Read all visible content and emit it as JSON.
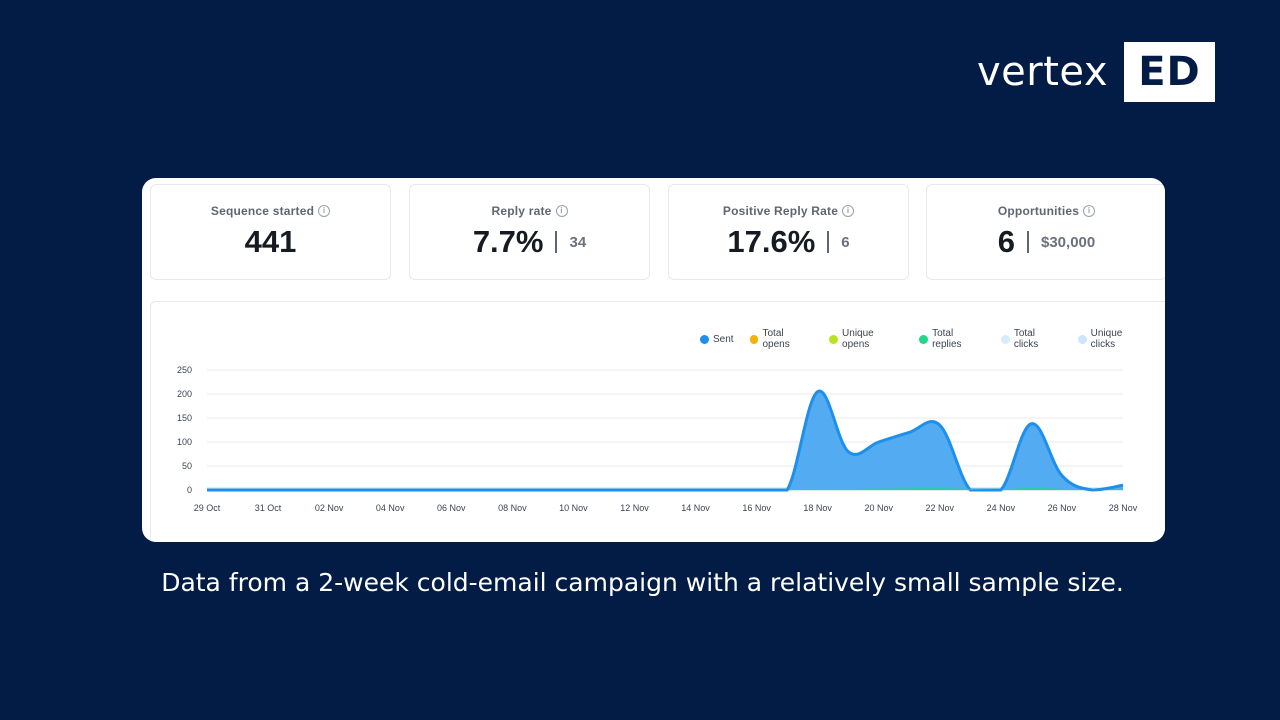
{
  "logo": {
    "word": "vertex",
    "box": "ED"
  },
  "kpis": [
    {
      "title": "Sequence started",
      "value": "441",
      "sub": ""
    },
    {
      "title": "Reply rate",
      "value": "7.7%",
      "sub": "34"
    },
    {
      "title": "Positive Reply Rate",
      "value": "17.6%",
      "sub": "6"
    },
    {
      "title": "Opportunities",
      "value": "6",
      "sub": "$30,000"
    }
  ],
  "info_icon": "info-icon",
  "caption": "Data from a 2-week cold-email campaign with a relatively small sample size.",
  "colors": {
    "background": "#031c45",
    "sent": "#1e8fea",
    "sent_fill": "#4aa8f0",
    "total_opens": "#f5b301",
    "unique_opens": "#b5e61d",
    "total_replies": "#22d68a",
    "total_clicks": "#d7ecfa",
    "unique_clicks": "#c9e6fb"
  },
  "chart_data": {
    "type": "area",
    "legend_placement": "top-right",
    "grid": true,
    "ylim": [
      0,
      250
    ],
    "yticks": [
      "0",
      "50",
      "100",
      "150",
      "200",
      "250"
    ],
    "xticks": [
      "29 Oct",
      "31 Oct",
      "02 Nov",
      "04 Nov",
      "06 Nov",
      "08 Nov",
      "10 Nov",
      "12 Nov",
      "14 Nov",
      "16 Nov",
      "18 Nov",
      "20 Nov",
      "22 Nov",
      "24 Nov",
      "26 Nov",
      "28 Nov"
    ],
    "x": [
      "29 Oct",
      "30 Oct",
      "31 Oct",
      "01 Nov",
      "02 Nov",
      "03 Nov",
      "04 Nov",
      "05 Nov",
      "06 Nov",
      "07 Nov",
      "08 Nov",
      "09 Nov",
      "10 Nov",
      "11 Nov",
      "12 Nov",
      "13 Nov",
      "14 Nov",
      "15 Nov",
      "16 Nov",
      "17 Nov",
      "18 Nov",
      "19 Nov",
      "20 Nov",
      "21 Nov",
      "22 Nov",
      "23 Nov",
      "24 Nov",
      "25 Nov",
      "26 Nov",
      "27 Nov",
      "28 Nov"
    ],
    "series": [
      {
        "name": "Sent",
        "values": [
          0,
          0,
          0,
          0,
          0,
          0,
          0,
          0,
          0,
          0,
          0,
          0,
          0,
          0,
          0,
          0,
          0,
          0,
          0,
          0,
          205,
          80,
          100,
          120,
          135,
          0,
          0,
          138,
          30,
          0,
          10
        ]
      },
      {
        "name": "Total opens",
        "values": [
          0,
          0,
          0,
          0,
          0,
          0,
          0,
          0,
          0,
          0,
          0,
          0,
          0,
          0,
          0,
          0,
          0,
          0,
          0,
          0,
          0,
          0,
          0,
          0,
          0,
          0,
          0,
          0,
          0,
          0,
          0
        ]
      },
      {
        "name": "Unique opens",
        "values": [
          0,
          0,
          0,
          0,
          0,
          0,
          0,
          0,
          0,
          0,
          0,
          0,
          0,
          0,
          0,
          0,
          0,
          0,
          0,
          0,
          0,
          0,
          0,
          0,
          0,
          0,
          0,
          0,
          0,
          0,
          0
        ]
      },
      {
        "name": "Total replies",
        "values": [
          0,
          0,
          0,
          0,
          0,
          0,
          0,
          0,
          0,
          0,
          0,
          0,
          0,
          0,
          0,
          0,
          0,
          0,
          0,
          0,
          2,
          2,
          3,
          4,
          5,
          2,
          0,
          6,
          2,
          0,
          1
        ]
      },
      {
        "name": "Total clicks",
        "values": [
          0,
          0,
          0,
          0,
          0,
          0,
          0,
          0,
          0,
          0,
          0,
          0,
          0,
          0,
          0,
          0,
          0,
          0,
          0,
          0,
          0,
          0,
          0,
          0,
          0,
          0,
          0,
          0,
          0,
          0,
          0
        ]
      },
      {
        "name": "Unique clicks",
        "values": [
          0,
          0,
          0,
          0,
          0,
          0,
          0,
          0,
          0,
          0,
          0,
          0,
          0,
          0,
          0,
          0,
          0,
          0,
          0,
          0,
          0,
          0,
          0,
          0,
          0,
          0,
          0,
          0,
          0,
          0,
          0
        ]
      }
    ]
  }
}
